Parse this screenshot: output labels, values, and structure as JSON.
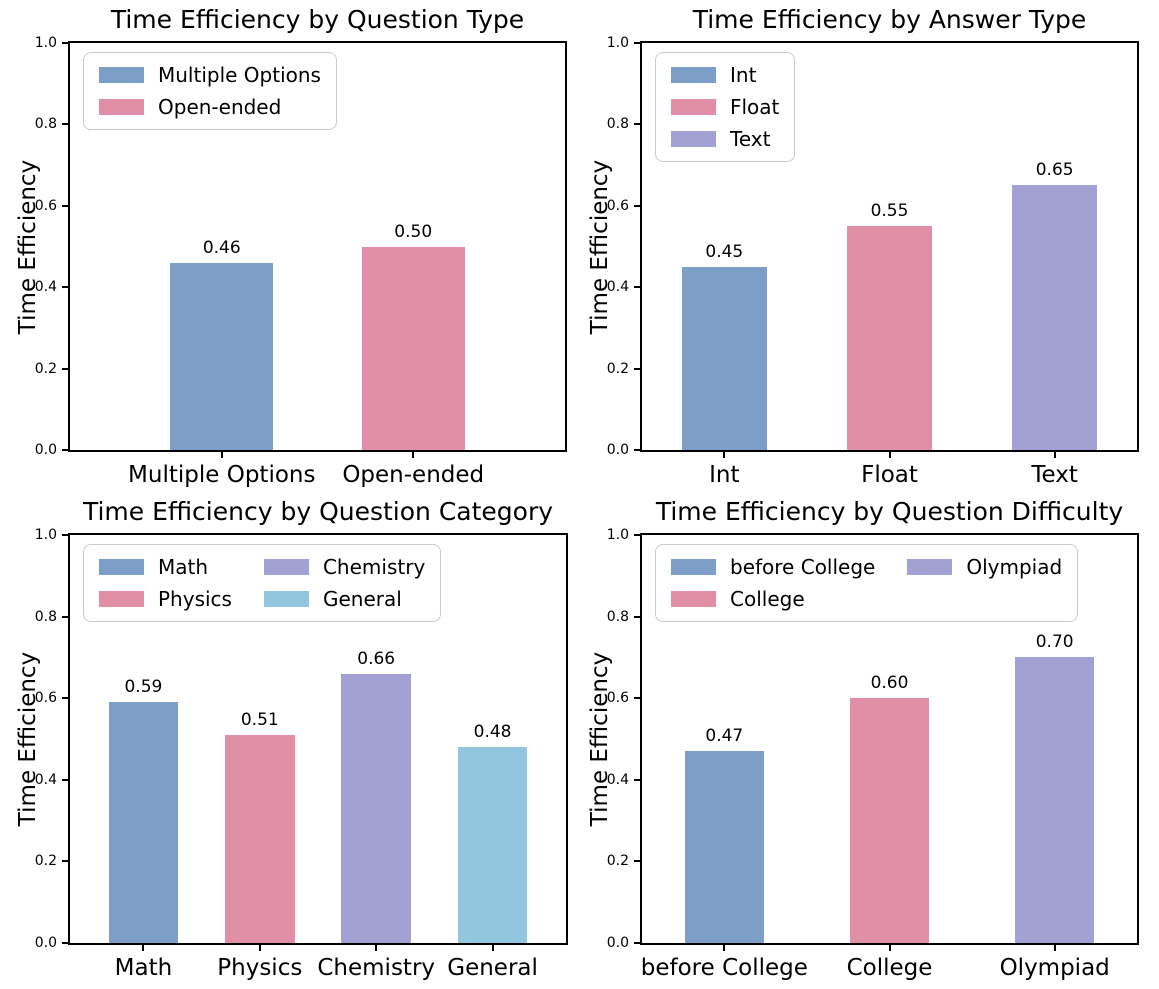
{
  "figure": {
    "background": "#ffffff",
    "text_color": "#000000",
    "axis_line_color": "#000000"
  },
  "palette": {
    "steel_blue": "#7d9fc7",
    "rose_pink": "#e08fa6",
    "lavender_purple": "#a3a0d4",
    "light_cyan_blue": "#92c5de"
  },
  "chart_data": [
    {
      "id": "question-type",
      "type": "bar",
      "title": "Time Efficiency by Question Type",
      "xlabel": "",
      "ylabel": "Time Efficiency",
      "ylim": [
        0.0,
        1.0
      ],
      "yticks": [
        0.0,
        0.2,
        0.4,
        0.6,
        0.8,
        1.0
      ],
      "ytick_labels": [
        "0.0",
        "0.2",
        "0.4",
        "0.6",
        "0.8",
        "1.0"
      ],
      "grid": false,
      "categories": [
        "Multiple Options",
        "Open-ended"
      ],
      "values": [
        0.46,
        0.5
      ],
      "bar_labels": [
        "0.46",
        "0.50"
      ],
      "bar_colors": [
        "#7d9fc7",
        "#e08fa6"
      ],
      "legend": {
        "position": "upper left",
        "ncol": 1,
        "entries": [
          {
            "label": "Multiple Options",
            "color": "#7d9fc7"
          },
          {
            "label": "Open-ended",
            "color": "#e08fa6"
          }
        ]
      },
      "layout": {
        "edge_frac": 0.3066,
        "bar_frac": 0.2084
      }
    },
    {
      "id": "answer-type",
      "type": "bar",
      "title": "Time Efficiency by Answer Type",
      "xlabel": "",
      "ylabel": "Time Efficiency",
      "ylim": [
        0.0,
        1.0
      ],
      "yticks": [
        0.0,
        0.2,
        0.4,
        0.6,
        0.8,
        1.0
      ],
      "ytick_labels": [
        "0.0",
        "0.2",
        "0.4",
        "0.6",
        "0.8",
        "1.0"
      ],
      "grid": false,
      "categories": [
        "Int",
        "Float",
        "Text"
      ],
      "values": [
        0.45,
        0.55,
        0.65
      ],
      "bar_labels": [
        "0.45",
        "0.55",
        "0.65"
      ],
      "bar_colors": [
        "#7d9fc7",
        "#e08fa6",
        "#a3a0d4"
      ],
      "legend": {
        "position": "upper left",
        "ncol": 1,
        "entries": [
          {
            "label": "Int",
            "color": "#7d9fc7"
          },
          {
            "label": "Float",
            "color": "#e08fa6"
          },
          {
            "label": "Text",
            "color": "#a3a0d4"
          }
        ]
      },
      "layout": {
        "edge_frac": 0.1663,
        "bar_frac": 0.1724
      }
    },
    {
      "id": "question-category",
      "type": "bar",
      "title": "Time Efficiency by Question Category",
      "xlabel": "",
      "ylabel": "Time Efficiency",
      "ylim": [
        0.0,
        1.0
      ],
      "yticks": [
        0.0,
        0.2,
        0.4,
        0.6,
        0.8,
        1.0
      ],
      "ytick_labels": [
        "0.0",
        "0.2",
        "0.4",
        "0.6",
        "0.8",
        "1.0"
      ],
      "grid": false,
      "categories": [
        "Math",
        "Physics",
        "Chemistry",
        "General"
      ],
      "values": [
        0.59,
        0.51,
        0.66,
        0.48
      ],
      "bar_labels": [
        "0.59",
        "0.51",
        "0.66",
        "0.48"
      ],
      "bar_colors": [
        "#7d9fc7",
        "#e08fa6",
        "#a3a0d4",
        "#92c5de"
      ],
      "legend": {
        "position": "upper left",
        "ncol": 2,
        "entries": [
          {
            "label": "Math",
            "color": "#7d9fc7"
          },
          {
            "label": "Physics",
            "color": "#e08fa6"
          },
          {
            "label": "Chemistry",
            "color": "#a3a0d4"
          },
          {
            "label": "General",
            "color": "#92c5de"
          }
        ]
      },
      "layout": {
        "edge_frac": 0.148,
        "bar_frac": 0.14
      }
    },
    {
      "id": "question-difficulty",
      "type": "bar",
      "title": "Time Efficiency by Question Difficulty",
      "xlabel": "",
      "ylabel": "Time Efficiency",
      "ylim": [
        0.0,
        1.0
      ],
      "yticks": [
        0.0,
        0.2,
        0.4,
        0.6,
        0.8,
        1.0
      ],
      "ytick_labels": [
        "0.0",
        "0.2",
        "0.4",
        "0.6",
        "0.8",
        "1.0"
      ],
      "grid": false,
      "categories": [
        "before College",
        "College",
        "Olympiad"
      ],
      "values": [
        0.47,
        0.6,
        0.7
      ],
      "bar_labels": [
        "0.47",
        "0.60",
        "0.70"
      ],
      "bar_colors": [
        "#7d9fc7",
        "#e08fa6",
        "#a3a0d4"
      ],
      "legend": {
        "position": "upper left",
        "ncol": 2,
        "entries": [
          {
            "label": "before College",
            "color": "#7d9fc7"
          },
          {
            "label": "College",
            "color": "#e08fa6"
          },
          {
            "label": "Olympiad",
            "color": "#a3a0d4"
          }
        ]
      },
      "layout": {
        "edge_frac": 0.1663,
        "bar_frac": 0.1603
      }
    }
  ]
}
